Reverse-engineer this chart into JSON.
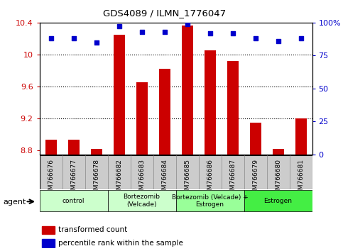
{
  "title": "GDS4089 / ILMN_1776047",
  "samples": [
    "GSM766676",
    "GSM766677",
    "GSM766678",
    "GSM766682",
    "GSM766683",
    "GSM766684",
    "GSM766685",
    "GSM766686",
    "GSM766687",
    "GSM766679",
    "GSM766680",
    "GSM766681"
  ],
  "transformed_count": [
    8.93,
    8.93,
    8.82,
    10.25,
    9.65,
    9.82,
    10.36,
    10.05,
    9.92,
    9.15,
    8.82,
    9.2
  ],
  "percentile_rank": [
    88,
    88,
    85,
    97,
    93,
    93,
    99,
    92,
    92,
    88,
    86,
    88
  ],
  "ylim_left": [
    8.75,
    10.4
  ],
  "ylim_right": [
    0,
    100
  ],
  "yticks_left": [
    8.8,
    9.2,
    9.6,
    10.0,
    10.4
  ],
  "yticks_right": [
    0,
    25,
    50,
    75,
    100
  ],
  "ytick_labels_left": [
    "8.8",
    "9.2",
    "9.6",
    "10",
    "10.4"
  ],
  "ytick_labels_right": [
    "0",
    "25",
    "50",
    "75",
    "100%"
  ],
  "groups": [
    {
      "label": "control",
      "start": 0,
      "end": 3,
      "color": "#ccffcc"
    },
    {
      "label": "Bortezomib\n(Velcade)",
      "start": 3,
      "end": 6,
      "color": "#ccffcc"
    },
    {
      "label": "Bortezomib (Velcade) +\nEstrogen",
      "start": 6,
      "end": 9,
      "color": "#99ff99"
    },
    {
      "label": "Estrogen",
      "start": 9,
      "end": 12,
      "color": "#44ee44"
    }
  ],
  "bar_color": "#cc0000",
  "dot_color": "#0000cc",
  "bar_width": 0.5,
  "agent_label": "agent",
  "legend_bar_label": "transformed count",
  "legend_dot_label": "percentile rank within the sample",
  "tick_color_left": "#cc0000",
  "tick_color_right": "#0000cc",
  "grid_yticks": [
    9.2,
    9.6,
    10.0
  ],
  "xtick_bg_color": "#cccccc",
  "xtick_divider_color": "#888888"
}
